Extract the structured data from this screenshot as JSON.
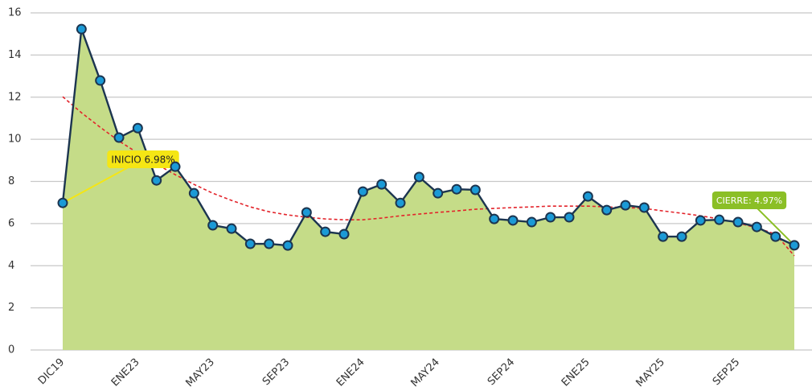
{
  "chart_data": {
    "type": "area",
    "categories": [
      "DIC19",
      null,
      null,
      null,
      "ENE23",
      null,
      null,
      null,
      "MAY23",
      null,
      null,
      null,
      "SEP23",
      null,
      null,
      null,
      "ENE24",
      null,
      null,
      null,
      "MAY24",
      null,
      null,
      null,
      "SEP24",
      null,
      null,
      null,
      "ENE25",
      null,
      null,
      null,
      "MAY25",
      null,
      null,
      null,
      "SEP25",
      null,
      null,
      null
    ],
    "series": [
      {
        "color": "#1b9ad6",
        "line_color": "#1c3550",
        "fill": "#c5dc88",
        "values": [
          6.98,
          15.23,
          12.79,
          10.08,
          10.53,
          8.05,
          8.7,
          7.44,
          5.92,
          5.76,
          5.04,
          5.04,
          4.96,
          6.53,
          5.61,
          5.5,
          7.52,
          7.86,
          6.98,
          8.21,
          7.44,
          7.63,
          7.6,
          6.22,
          6.15,
          6.07,
          6.3,
          6.3,
          7.29,
          6.64,
          6.87,
          6.76,
          5.38,
          5.38,
          6.15,
          6.18,
          6.07,
          5.84,
          5.38,
          4.97
        ]
      },
      {
        "color": "#e3242b",
        "dashed": true,
        "values": [
          12.02,
          11.26,
          10.57,
          9.92,
          9.35,
          8.82,
          8.32,
          7.86,
          7.44,
          7.1,
          6.79,
          6.56,
          6.41,
          6.3,
          6.22,
          6.18,
          6.18,
          6.26,
          6.37,
          6.45,
          6.53,
          6.6,
          6.68,
          6.72,
          6.76,
          6.79,
          6.83,
          6.83,
          6.83,
          6.79,
          6.76,
          6.72,
          6.6,
          6.49,
          6.37,
          6.22,
          6.03,
          5.8,
          5.5,
          4.47
        ]
      }
    ],
    "annotations": [
      {
        "text": "INICIO 6.98%",
        "color": "#f5e614"
      },
      {
        "text": "CIERRE: 4.97%",
        "color": "#8bbf26"
      }
    ],
    "ylim": [
      0,
      16
    ],
    "yticks": [
      0,
      2,
      4,
      6,
      8,
      10,
      12,
      14,
      16
    ],
    "grid": true
  }
}
